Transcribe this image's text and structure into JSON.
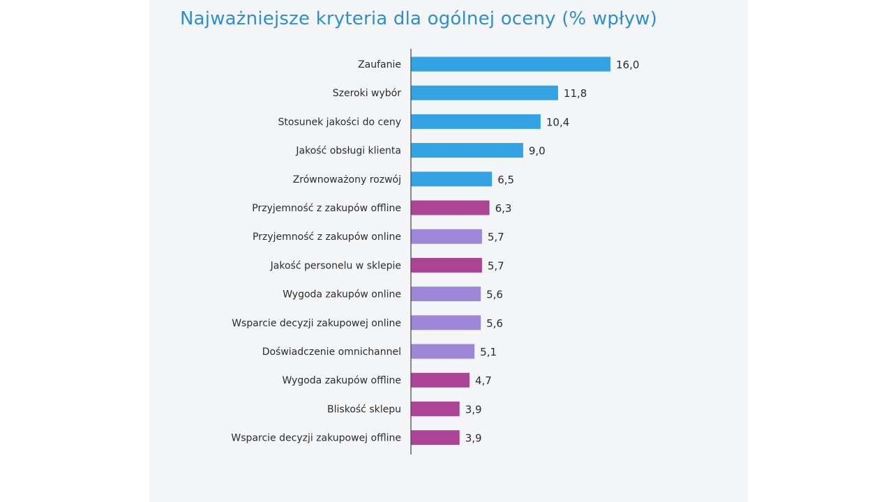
{
  "chart_data": {
    "type": "bar",
    "orientation": "horizontal",
    "title": "Najważniejsze kryteria dla ogólnej oceny (% wpływ)",
    "decimal_separator": ",",
    "categories": [
      "Zaufanie",
      "Szeroki wybór",
      "Stosunek jakości do ceny",
      "Jakość obsługi klienta",
      "Zrównoważony rozwój",
      "Przyjemność z zakupów offline",
      "Przyjemność z zakupów online",
      "Jakość personelu w sklepie",
      "Wygoda zakupów online",
      "Wsparcie decyzji zakupowej online",
      "Doświadczenie omnichannel",
      "Wygoda zakupów offline",
      "Bliskość sklepu",
      "Wsparcie decyzji zakupowej offline"
    ],
    "values": [
      16.0,
      11.8,
      10.4,
      9.0,
      6.5,
      6.3,
      5.7,
      5.7,
      5.6,
      5.6,
      5.1,
      4.7,
      3.9,
      3.9
    ],
    "bar_colors": [
      "#33a3e3",
      "#33a3e3",
      "#33a3e3",
      "#33a3e3",
      "#33a3e3",
      "#ab4495",
      "#9e86d8",
      "#ab4495",
      "#9e86d8",
      "#9e86d8",
      "#9e86d8",
      "#ab4495",
      "#ab4495",
      "#ab4495"
    ],
    "xlim": [
      0,
      16
    ],
    "grid": false,
    "legend": "none"
  }
}
